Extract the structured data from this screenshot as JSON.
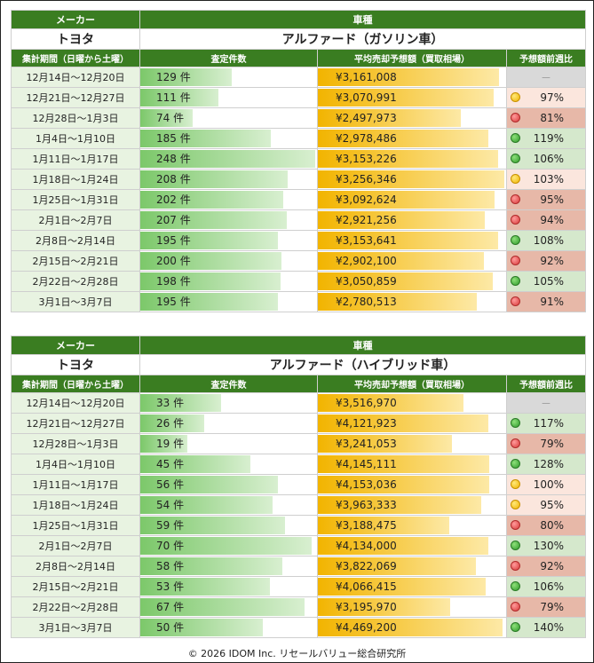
{
  "tables": [
    {
      "maker_header": "メーカー",
      "model_header": "車種",
      "maker": "トヨタ",
      "model": "アルファード（ガソリン車）",
      "col_period": "集計期間（日曜から土曜）",
      "col_count": "査定件数",
      "col_price": "平均売却予想額（買取相場）",
      "col_week": "予想額前週比",
      "rows": [
        {
          "period": "12月14日～12月20日",
          "count": "129 件",
          "count_value": 129,
          "price": "¥3,161,008",
          "price_value": 3161008,
          "week": "－",
          "status": "na"
        },
        {
          "period": "12月21日～12月27日",
          "count": "111 件",
          "count_value": 111,
          "price": "¥3,070,991",
          "price_value": 3070991,
          "week": "97%",
          "status": "yellow"
        },
        {
          "period": "12月28日～1月3日",
          "count": "74 件",
          "count_value": 74,
          "price": "¥2,497,973",
          "price_value": 2497973,
          "week": "81%",
          "status": "red"
        },
        {
          "period": "1月4日～1月10日",
          "count": "185 件",
          "count_value": 185,
          "price": "¥2,978,486",
          "price_value": 2978486,
          "week": "119%",
          "status": "green"
        },
        {
          "period": "1月11日～1月17日",
          "count": "248 件",
          "count_value": 248,
          "price": "¥3,153,226",
          "price_value": 3153226,
          "week": "106%",
          "status": "green"
        },
        {
          "period": "1月18日～1月24日",
          "count": "208 件",
          "count_value": 208,
          "price": "¥3,256,346",
          "price_value": 3256346,
          "week": "103%",
          "status": "yellow"
        },
        {
          "period": "1月25日～1月31日",
          "count": "202 件",
          "count_value": 202,
          "price": "¥3,092,624",
          "price_value": 3092624,
          "week": "95%",
          "status": "red"
        },
        {
          "period": "2月1日～2月7日",
          "count": "207 件",
          "count_value": 207,
          "price": "¥2,921,256",
          "price_value": 2921256,
          "week": "94%",
          "status": "red"
        },
        {
          "period": "2月8日～2月14日",
          "count": "195 件",
          "count_value": 195,
          "price": "¥3,153,641",
          "price_value": 3153641,
          "week": "108%",
          "status": "green"
        },
        {
          "period": "2月15日～2月21日",
          "count": "200 件",
          "count_value": 200,
          "price": "¥2,902,100",
          "price_value": 2902100,
          "week": "92%",
          "status": "red"
        },
        {
          "period": "2月22日～2月28日",
          "count": "198 件",
          "count_value": 198,
          "price": "¥3,050,859",
          "price_value": 3050859,
          "week": "105%",
          "status": "green"
        },
        {
          "period": "3月1日～3月7日",
          "count": "195 件",
          "count_value": 195,
          "price": "¥2,780,513",
          "price_value": 2780513,
          "week": "91%",
          "status": "red"
        }
      ]
    },
    {
      "maker_header": "メーカー",
      "model_header": "車種",
      "maker": "トヨタ",
      "model": "アルファード（ハイブリッド車）",
      "col_period": "集計期間（日曜から土曜）",
      "col_count": "査定件数",
      "col_price": "平均売却予想額（買取相場）",
      "col_week": "予想額前週比",
      "rows": [
        {
          "period": "12月14日～12月20日",
          "count": "33 件",
          "count_value": 33,
          "price": "¥3,516,970",
          "price_value": 3516970,
          "week": "－",
          "status": "na"
        },
        {
          "period": "12月21日～12月27日",
          "count": "26 件",
          "count_value": 26,
          "price": "¥4,121,923",
          "price_value": 4121923,
          "week": "117%",
          "status": "green"
        },
        {
          "period": "12月28日～1月3日",
          "count": "19 件",
          "count_value": 19,
          "price": "¥3,241,053",
          "price_value": 3241053,
          "week": "79%",
          "status": "red"
        },
        {
          "period": "1月4日～1月10日",
          "count": "45 件",
          "count_value": 45,
          "price": "¥4,145,111",
          "price_value": 4145111,
          "week": "128%",
          "status": "green"
        },
        {
          "period": "1月11日～1月17日",
          "count": "56 件",
          "count_value": 56,
          "price": "¥4,153,036",
          "price_value": 4153036,
          "week": "100%",
          "status": "yellow"
        },
        {
          "period": "1月18日～1月24日",
          "count": "54 件",
          "count_value": 54,
          "price": "¥3,963,333",
          "price_value": 3963333,
          "week": "95%",
          "status": "yellow"
        },
        {
          "period": "1月25日～1月31日",
          "count": "59 件",
          "count_value": 59,
          "price": "¥3,188,475",
          "price_value": 3188475,
          "week": "80%",
          "status": "red"
        },
        {
          "period": "2月1日～2月7日",
          "count": "70 件",
          "count_value": 70,
          "price": "¥4,134,000",
          "price_value": 4134000,
          "week": "130%",
          "status": "green"
        },
        {
          "period": "2月8日～2月14日",
          "count": "58 件",
          "count_value": 58,
          "price": "¥3,822,069",
          "price_value": 3822069,
          "week": "92%",
          "status": "red"
        },
        {
          "period": "2月15日～2月21日",
          "count": "53 件",
          "count_value": 53,
          "price": "¥4,066,415",
          "price_value": 4066415,
          "week": "106%",
          "status": "green"
        },
        {
          "period": "2月22日～2月28日",
          "count": "67 件",
          "count_value": 67,
          "price": "¥3,195,970",
          "price_value": 3195970,
          "week": "79%",
          "status": "red"
        },
        {
          "period": "3月1日～3月7日",
          "count": "50 件",
          "count_value": 50,
          "price": "¥4,469,200",
          "price_value": 4469200,
          "week": "140%",
          "status": "green"
        }
      ]
    }
  ],
  "footer": "© 2026 IDOM Inc. リセールバリュー総合研究所",
  "colors": {
    "header_green": "#3a7d21",
    "count_bar": "#7cc86a",
    "price_bar": "#f2b400"
  }
}
